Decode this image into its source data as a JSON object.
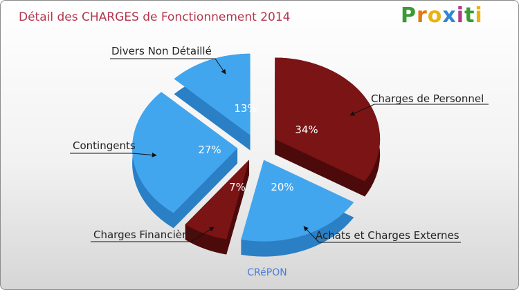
{
  "chart_data": {
    "type": "pie",
    "title": "Détail des CHARGES de Fonctionnement 2014",
    "subtitle": "CRéPON",
    "brand": "Proxiti",
    "brand_letters": [
      {
        "char": "P",
        "color": "#3a9a33"
      },
      {
        "char": "r",
        "color": "#e07a12"
      },
      {
        "char": "o",
        "color": "#e9b30f"
      },
      {
        "char": "x",
        "color": "#2f86d4"
      },
      {
        "char": "i",
        "color": "#b53b88"
      },
      {
        "char": "t",
        "color": "#3a9a33"
      },
      {
        "char": "i",
        "color": "#e9b30f"
      }
    ],
    "slices": [
      {
        "label": "Charges de Personnel",
        "value": 34,
        "display": "34%",
        "color": "#7b1414",
        "side": "#4c0a0a"
      },
      {
        "label": "Achats et Charges Externes",
        "value": 20,
        "display": "20%",
        "color": "#42a6ee",
        "side": "#2b7fc4"
      },
      {
        "label": "Charges Financières",
        "value": 7,
        "display": "7%",
        "color": "#7b1414",
        "side": "#4c0a0a"
      },
      {
        "label": "Contingents",
        "value": 27,
        "display": "27%",
        "color": "#42a6ee",
        "side": "#2b7fc4"
      },
      {
        "label": "Divers Non Détaillé",
        "value": 13,
        "display": "13%",
        "color": "#42a6ee",
        "side": "#2b7fc4"
      }
    ]
  }
}
